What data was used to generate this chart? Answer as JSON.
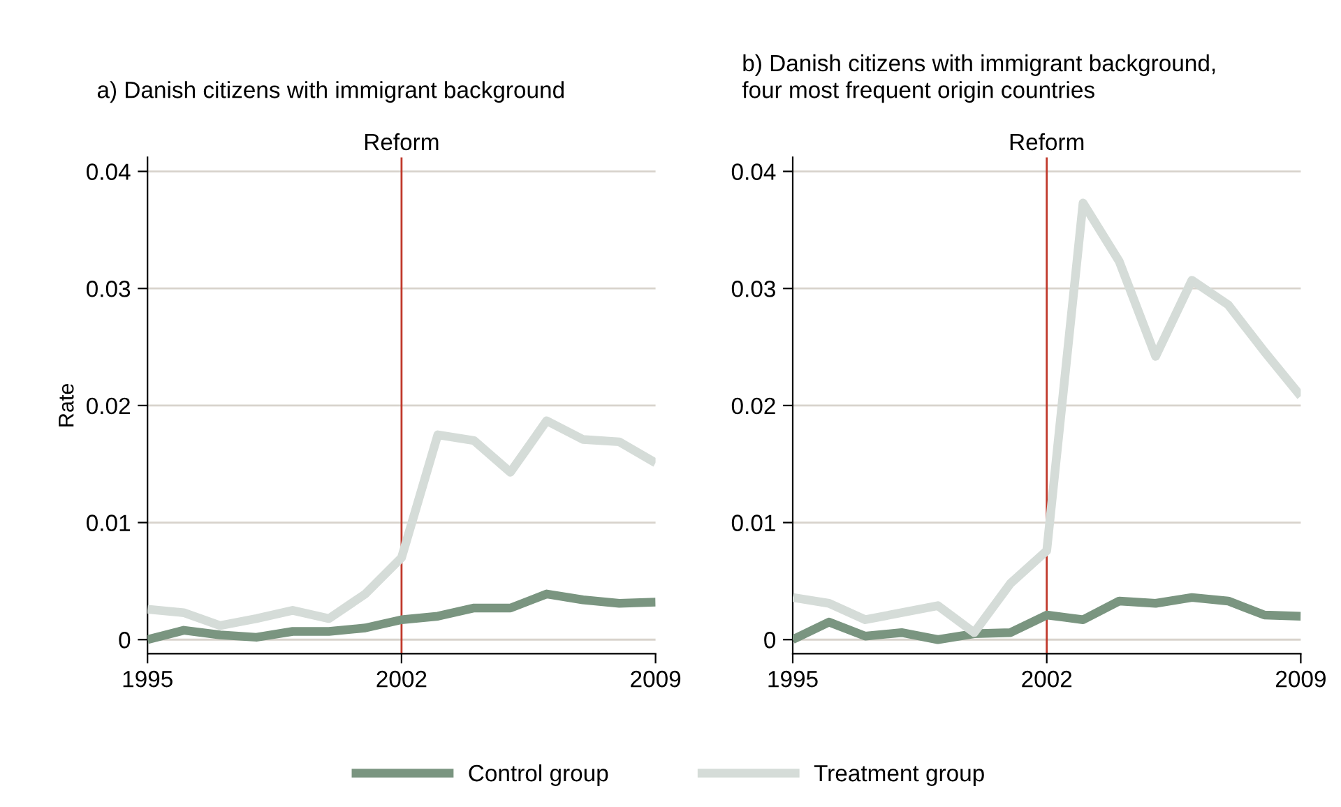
{
  "chart_data": [
    {
      "type": "line",
      "title": "a) Danish citizens with immigrant background",
      "ylabel": "Rate",
      "x": [
        1995,
        1996,
        1997,
        1998,
        1999,
        2000,
        2001,
        2002,
        2003,
        2004,
        2005,
        2006,
        2007,
        2008,
        2009
      ],
      "series": [
        {
          "color": "#7a9580",
          "values": [
            0.0,
            0.0008,
            0.0004,
            0.0002,
            0.0007,
            0.0007,
            0.001,
            0.0017,
            0.002,
            0.0027,
            0.0027,
            0.0039,
            0.0034,
            0.0031,
            0.0032
          ]
        },
        {
          "color": "#d5dcd8",
          "values": [
            0.0026,
            0.0023,
            0.0012,
            0.0018,
            0.0025,
            0.0018,
            0.0039,
            0.007,
            0.0175,
            0.017,
            0.0143,
            0.0187,
            0.0171,
            0.0169,
            0.0151
          ]
        }
      ],
      "xlim": [
        1995,
        2009
      ],
      "xticks": [
        1995,
        2002,
        2009
      ],
      "ylim": [
        -0.0012,
        0.0412
      ],
      "yticks": [
        {
          "value": 0,
          "label": "0"
        },
        0.01,
        0.02,
        0.03,
        0.04
      ],
      "ref_lines": [
        {
          "axis": "x",
          "value": 2002,
          "label": "Reform",
          "color": "#c0392b"
        }
      ],
      "grid": "y",
      "marker": "none",
      "line_style": "solid"
    },
    {
      "type": "line",
      "title": "b) Danish citizens with immigrant background, four most frequent origin countries",
      "x": [
        1995,
        1996,
        1997,
        1998,
        1999,
        2000,
        2001,
        2002,
        2003,
        2004,
        2005,
        2006,
        2007,
        2008,
        2009
      ],
      "series": [
        {
          "name": "Control group",
          "color": "#7a9580",
          "values": [
            0.0,
            0.0015,
            0.0003,
            0.0006,
            0.0,
            0.0005,
            0.0006,
            0.0021,
            0.0017,
            0.0033,
            0.0031,
            0.0036,
            0.0033,
            0.0021,
            0.002
          ]
        },
        {
          "name": "Treatment group",
          "color": "#d5dcd8",
          "values": [
            0.0036,
            0.0031,
            0.0017,
            0.0023,
            0.0029,
            0.0006,
            0.0048,
            0.0076,
            0.0373,
            0.0323,
            0.0242,
            0.0307,
            0.0286,
            0.0246,
            0.0208
          ]
        }
      ],
      "xlim": [
        1995,
        2009
      ],
      "xticks": [
        1995,
        2002,
        2009
      ],
      "ylim": [
        -0.0012,
        0.0412
      ],
      "yticks": [
        {
          "value": 0,
          "label": "0"
        },
        0.01,
        0.02,
        0.03,
        0.04
      ],
      "ref_lines": [
        {
          "axis": "x",
          "value": 2002,
          "label": "Reform",
          "color": "#c0392b"
        }
      ],
      "grid": "y",
      "legend": "bottom",
      "marker": "none",
      "line_style": "solid"
    }
  ]
}
